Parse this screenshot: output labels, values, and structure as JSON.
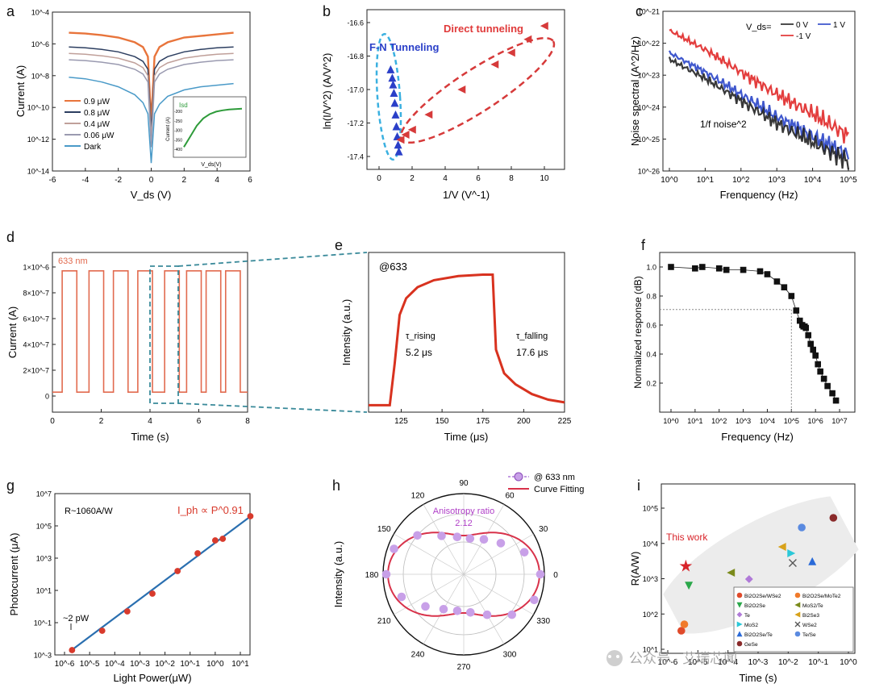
{
  "figure": {
    "panels": [
      "a",
      "b",
      "c",
      "d",
      "e",
      "f",
      "g",
      "h",
      "i"
    ]
  },
  "chart_data": [
    {
      "panel": "a",
      "type": "line",
      "xlabel": "V_ds (V)",
      "ylabel": "Current (A)",
      "xlim": [
        -6,
        6
      ],
      "ylim_log10": [
        -14,
        -4
      ],
      "xticks": [
        "-6",
        "-4",
        "-2",
        "0",
        "2",
        "4",
        "6"
      ],
      "yticks": [
        "10^-14",
        "10^-12",
        "10^-10",
        "10^-8",
        "10^-6",
        "10^-4"
      ],
      "series": [
        {
          "name": "0.9 μW",
          "color": "#e8743b",
          "x": [
            -5,
            -4,
            -3,
            -2,
            -1,
            -0.5,
            -0.2,
            0,
            0.2,
            0.5,
            1,
            2,
            3,
            4,
            5
          ],
          "log10y": [
            -5.3,
            -5.35,
            -5.45,
            -5.6,
            -5.9,
            -6.2,
            -6.8,
            -11,
            -6.8,
            -6.2,
            -5.9,
            -5.6,
            -5.5,
            -5.4,
            -5.3
          ]
        },
        {
          "name": "0.8 μW",
          "color": "#2c3e60",
          "x": [
            -5,
            -4,
            -3,
            -2,
            -1,
            -0.5,
            -0.2,
            0,
            0.2,
            0.5,
            1,
            2,
            3,
            4,
            5
          ],
          "log10y": [
            -6.2,
            -6.25,
            -6.35,
            -6.5,
            -6.8,
            -7.1,
            -7.6,
            -11.5,
            -7.6,
            -7.1,
            -6.8,
            -6.5,
            -6.35,
            -6.25,
            -6.2
          ]
        },
        {
          "name": "0.4 μW",
          "color": "#c0a09a",
          "x": [
            -5,
            -4,
            -3,
            -2,
            -1,
            -0.5,
            -0.2,
            0,
            0.2,
            0.5,
            1,
            2,
            3,
            4,
            5
          ],
          "log10y": [
            -6.6,
            -6.65,
            -6.75,
            -6.9,
            -7.2,
            -7.5,
            -8,
            -12,
            -8,
            -7.5,
            -7.2,
            -6.9,
            -6.75,
            -6.65,
            -6.6
          ]
        },
        {
          "name": "0.06 μW",
          "color": "#9a9ab0",
          "x": [
            -5,
            -4,
            -3,
            -2,
            -1,
            -0.5,
            -0.2,
            0,
            0.2,
            0.5,
            1,
            2,
            3,
            4,
            5
          ],
          "log10y": [
            -7,
            -7.05,
            -7.15,
            -7.3,
            -7.6,
            -7.9,
            -8.4,
            -12.5,
            -8.4,
            -7.9,
            -7.6,
            -7.3,
            -7.15,
            -7.05,
            -7
          ]
        },
        {
          "name": "Dark",
          "color": "#4a9ac8",
          "x": [
            -5,
            -4,
            -3,
            -2,
            -1,
            -0.5,
            -0.2,
            0,
            0.2,
            0.5,
            1,
            2,
            3,
            4,
            5
          ],
          "log10y": [
            -8.1,
            -8.2,
            -8.4,
            -8.7,
            -9.2,
            -9.7,
            -10.4,
            -13.5,
            -10.4,
            -9.8,
            -9.3,
            -8.9,
            -8.7,
            -8.6,
            -8.5
          ]
        }
      ],
      "inset": {
        "label": "Isd",
        "xlabel": "V_ds(V)",
        "ylabel": "Current (A)",
        "yticks": [
          "-200",
          "-250",
          "-300",
          "-350",
          "-400"
        ],
        "color": "#2e9b3a",
        "values": [
          0.05,
          0.3,
          0.55,
          0.72,
          0.82,
          0.88,
          0.91,
          0.93,
          0.94,
          0.95
        ]
      }
    },
    {
      "panel": "b",
      "type": "scatter",
      "xlabel": "1/V (V^-1)",
      "ylabel": "ln(I/V^2) (A/V^2)",
      "xlim": [
        -0.5,
        10.5
      ],
      "ylim": [
        -17.45,
        -16.55
      ],
      "xticks": [
        "0",
        "2",
        "4",
        "6",
        "8",
        "10"
      ],
      "yticks": [
        "-17.4",
        "-17.2",
        "-17.0",
        "-16.8",
        "-16.6"
      ],
      "annotations": [
        "F-N Tunneling",
        "Direct tunneling"
      ],
      "series": [
        {
          "name": "F-N Tunneling",
          "color": "#2a3fc8",
          "marker": "triangle-up",
          "x": [
            0.7,
            0.8,
            0.85,
            0.9,
            0.95,
            1.0,
            1.05,
            1.1,
            1.15,
            1.2
          ],
          "y": [
            -16.88,
            -16.93,
            -16.97,
            -17.02,
            -17.08,
            -17.15,
            -17.22,
            -17.28,
            -17.33,
            -17.37
          ]
        },
        {
          "name": "Direct tunneling",
          "color": "#d63a3a",
          "marker": "triangle-left",
          "x": [
            1.3,
            1.6,
            2,
            3,
            5,
            7,
            8,
            9,
            10
          ],
          "y": [
            -17.3,
            -17.27,
            -17.24,
            -17.15,
            -17.0,
            -16.85,
            -16.78,
            -16.7,
            -16.62
          ]
        }
      ]
    },
    {
      "panel": "c",
      "type": "line",
      "xlabel": "Frenquency (Hz)",
      "ylabel": "Noise spectral (A^2/Hz)",
      "xlim_log10": [
        0,
        5
      ],
      "ylim_log10": [
        -26,
        -21
      ],
      "xticks": [
        "10^0",
        "10^1",
        "10^2",
        "10^3",
        "10^4",
        "10^5"
      ],
      "yticks": [
        "10^-26",
        "10^-25",
        "10^-24",
        "10^-23",
        "10^-22",
        "10^-21"
      ],
      "legend_title": "V_ds=",
      "annotation": "1/f noise^2",
      "series": [
        {
          "name": "0 V",
          "color": "#222222",
          "log10x": [
            0,
            1,
            2,
            3,
            4,
            5
          ],
          "log10y": [
            -22.5,
            -23.1,
            -23.8,
            -24.5,
            -25.1,
            -25.7
          ]
        },
        {
          "name": "1 V",
          "color": "#2a45c8",
          "log10x": [
            0,
            1,
            2,
            3,
            4,
            5
          ],
          "log10y": [
            -22.3,
            -22.9,
            -23.6,
            -24.3,
            -24.9,
            -25.5
          ]
        },
        {
          "name": "-1 V",
          "color": "#e02828",
          "log10x": [
            0,
            1,
            2,
            3,
            4,
            5
          ],
          "log10y": [
            -21.6,
            -22.2,
            -22.9,
            -23.6,
            -24.2,
            -24.9
          ]
        }
      ]
    },
    {
      "panel": "d",
      "type": "line",
      "xlabel": "Time (s)",
      "ylabel": "Current (A)",
      "legend": "633 nm",
      "xlim": [
        0,
        8
      ],
      "ylim": [
        -0.05,
        1.1
      ],
      "xticks": [
        "0",
        "2",
        "4",
        "6",
        "8"
      ],
      "yticks": [
        "0",
        "2×10^-7",
        "4×10^-7",
        "6×10^-7",
        "8×10^-7",
        "1×10^-6"
      ],
      "color": "#e26b4f",
      "pulse_starts": [
        0.4,
        1.5,
        2.5,
        3.5,
        4.6,
        5.5,
        6.3,
        7.1
      ],
      "pulse_width": 0.6,
      "on_level": 0.97,
      "off_level": 0.03
    },
    {
      "panel": "e",
      "type": "line",
      "xlabel": "Time (μs)",
      "ylabel": "Intensity (a.u.)",
      "legend": "@633",
      "xlim": [
        105,
        225
      ],
      "ylim": [
        0,
        1.15
      ],
      "xticks": [
        "125",
        "150",
        "175",
        "200",
        "225"
      ],
      "color": "#d8321f",
      "annotations": [
        "τ_rising",
        "5.2 μs",
        "τ_falling",
        "17.6 μs"
      ],
      "x": [
        105,
        118,
        121,
        124,
        128,
        135,
        145,
        160,
        175,
        181,
        183,
        188,
        195,
        205,
        215,
        225
      ],
      "y": [
        0.05,
        0.05,
        0.35,
        0.7,
        0.82,
        0.9,
        0.95,
        0.98,
        0.99,
        0.99,
        0.45,
        0.28,
        0.2,
        0.13,
        0.09,
        0.07
      ]
    },
    {
      "panel": "f",
      "type": "scatter",
      "xlabel": "Frequency (Hz)",
      "ylabel": "Normalized response (dB)",
      "xlim_log10": [
        0,
        7.3
      ],
      "ylim": [
        0,
        1.1
      ],
      "xticks": [
        "10^0",
        "10^1",
        "10^2",
        "10^3",
        "10^4",
        "10^5",
        "10^6",
        "10^7"
      ],
      "yticks": [
        "0.2",
        "0.4",
        "0.6",
        "0.8",
        "1.0"
      ],
      "reference_line": {
        "y": 0.707,
        "x_log10": 5.0
      },
      "log10x": [
        0,
        1,
        1.3,
        2,
        2.3,
        3,
        3.7,
        4,
        4.4,
        4.7,
        5,
        5.2,
        5.35,
        5.45,
        5.5,
        5.55,
        5.6,
        5.7,
        5.8,
        5.9,
        6,
        6.1,
        6.2,
        6.35,
        6.5,
        6.7,
        6.85
      ],
      "y": [
        1.0,
        0.99,
        1.0,
        0.99,
        0.98,
        0.98,
        0.97,
        0.95,
        0.9,
        0.86,
        0.8,
        0.7,
        0.63,
        0.6,
        0.59,
        0.59,
        0.58,
        0.53,
        0.47,
        0.43,
        0.39,
        0.33,
        0.28,
        0.23,
        0.18,
        0.13,
        0.08
      ]
    },
    {
      "panel": "g",
      "type": "scatter",
      "xlabel": "Light Power(μW)",
      "ylabel": "Photocurrent (μA)",
      "xlim_log10": [
        -6,
        2
      ],
      "ylim_log10": [
        -3,
        7
      ],
      "xticks": [
        "10^-6",
        "10^-5",
        "10^-4",
        "10^-3",
        "10^-2",
        "10^-1",
        "10^0",
        "10^1"
      ],
      "yticks": [
        "10^-3",
        "10^-1",
        "10^1",
        "10^3",
        "10^5",
        "10^7"
      ],
      "annotations": [
        "R~1060A/W",
        "I_ph ∝ P^0.91",
        "~2 pW"
      ],
      "fit_color": "#2a6fb0",
      "point_color": "#d83a2c",
      "log10x": [
        -5.7,
        -4.5,
        -3.5,
        -2.5,
        -1.5,
        -0.7,
        0,
        0.3,
        1.4
      ],
      "log10y": [
        -2.7,
        -1.5,
        -0.3,
        0.8,
        2.2,
        3.3,
        4.1,
        4.2,
        5.6
      ]
    },
    {
      "panel": "h",
      "type": "polar",
      "ylabel": "Intensity (a.u.)",
      "angles": [
        "0",
        "30",
        "60",
        "90",
        "120",
        "150",
        "180",
        "210",
        "240",
        "270",
        "300",
        "330"
      ],
      "legend": [
        "@ 633 nm",
        "Curve Fitting"
      ],
      "annotation": [
        "Anisotropy ratio",
        "2.12"
      ],
      "theta_deg": [
        0,
        20,
        40,
        60,
        80,
        100,
        120,
        140,
        160,
        180,
        200,
        220,
        240,
        260,
        280,
        300,
        320,
        340
      ],
      "r": [
        0.95,
        0.8,
        0.6,
        0.5,
        0.45,
        0.47,
        0.55,
        0.75,
        0.92,
        0.96,
        0.82,
        0.62,
        0.5,
        0.46,
        0.48,
        0.58,
        0.78,
        0.93
      ],
      "marker_color": "#b07ad8",
      "fit_color": "#d8324a"
    },
    {
      "panel": "i",
      "type": "scatter",
      "xlabel": "Time (s)",
      "ylabel": "R(A/W)",
      "xlim_log10": [
        -6,
        0
      ],
      "ylim_log10": [
        0,
        5
      ],
      "xticks": [
        "10^-6",
        "10^-5",
        "10^-4",
        "10^-3",
        "10^-2",
        "10^-1",
        "10^0"
      ],
      "yticks": [
        "10^1",
        "10^2",
        "10^3",
        "10^4",
        "10^5"
      ],
      "annotation": "This work",
      "points": [
        {
          "label": "This work",
          "marker": "star",
          "color": "#d8242a",
          "log10x": -5.4,
          "log10y": 3.2
        },
        {
          "label": "Bi2O2Se/WSe2",
          "marker": "circle",
          "color": "#e04a2a",
          "log10x": -5.55,
          "log10y": 1.2
        },
        {
          "label": "Bi2O2Se/MoTe2",
          "marker": "circle",
          "color": "#f07a2a",
          "log10x": -5.45,
          "log10y": 1.4
        },
        {
          "label": "Bi2O2Se",
          "marker": "triangle-down",
          "color": "#2aa84a",
          "log10x": -5.3,
          "log10y": 2.6
        },
        {
          "label": "MoS2/Te",
          "marker": "triangle-left",
          "color": "#7a8a1a",
          "log10x": -3.9,
          "log10y": 3.0
        },
        {
          "label": "Te",
          "marker": "diamond",
          "color": "#b07ad8",
          "log10x": -3.3,
          "log10y": 2.8
        },
        {
          "label": "Bi2Se3",
          "marker": "triangle-left",
          "color": "#d8a21a",
          "log10x": -2.2,
          "log10y": 3.8
        },
        {
          "label": "MoS2",
          "marker": "triangle-right",
          "color": "#2ac8d8",
          "log10x": -1.9,
          "log10y": 3.6
        },
        {
          "label": "WSe2",
          "marker": "cross",
          "color": "#555555",
          "log10x": -1.85,
          "log10y": 3.3
        },
        {
          "label": "Bi2O2Se/Te",
          "marker": "triangle-up",
          "color": "#2a6ad8",
          "log10x": -1.2,
          "log10y": 3.35
        },
        {
          "label": "Te/Se",
          "marker": "circle",
          "color": "#5a8ae0",
          "log10x": -1.55,
          "log10y": 4.4
        },
        {
          "label": "GeSe",
          "marker": "circle",
          "color": "#8a2a2a",
          "log10x": -0.5,
          "log10y": 4.7
        }
      ]
    }
  ],
  "watermark": "公众号 · 艾瑞芯闻"
}
